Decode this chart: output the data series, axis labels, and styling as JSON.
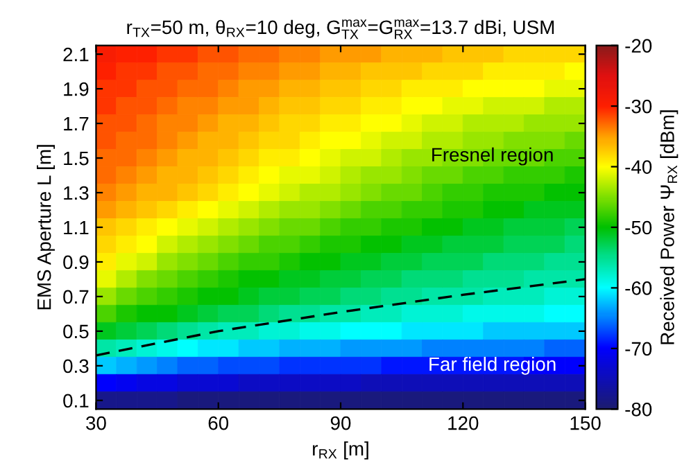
{
  "chart_data": {
    "type": "heatmap",
    "title": "r$_{TX}$=50 m, θ$_{RX}$=10 deg, G$^{max}$$_{TX}$=G$^{max}$$_{RX}$=13.7 dBi, USM",
    "xlabel": "r$_{RX}$ [m]",
    "ylabel": "EMS Aperture L [m]",
    "clabel": "Received Power Ψ$_{RX}$ [dBm]",
    "x": [
      32.5,
      37.5,
      42.5,
      47.5,
      52.5,
      57.5,
      62.5,
      67.5,
      72.5,
      77.5,
      82.5,
      87.5,
      92.5,
      97.5,
      102.5,
      107.5,
      112.5,
      117.5,
      122.5,
      127.5,
      132.5,
      137.5,
      142.5,
      147.5
    ],
    "y": [
      2.1,
      2.0,
      1.9,
      1.8,
      1.7,
      1.6,
      1.5,
      1.4,
      1.3,
      1.2,
      1.1,
      1.0,
      0.9,
      0.8,
      0.7,
      0.6,
      0.5,
      0.4,
      0.3,
      0.2,
      0.1
    ],
    "cells": [
      [
        -29,
        -30,
        -30,
        -31,
        -31,
        -32,
        -32,
        -33,
        -33,
        -34,
        -34,
        -35,
        -35,
        -35,
        -36,
        -36,
        -36,
        -37,
        -37,
        -37,
        -38,
        -38,
        -38,
        -38
      ],
      [
        -30,
        -31,
        -31,
        -32,
        -32,
        -33,
        -33,
        -34,
        -34,
        -35,
        -35,
        -36,
        -36,
        -37,
        -37,
        -37,
        -38,
        -38,
        -38,
        -39,
        -39,
        -39,
        -39,
        -40
      ],
      [
        -31,
        -31,
        -32,
        -32,
        -33,
        -33,
        -34,
        -35,
        -35,
        -36,
        -36,
        -37,
        -37,
        -38,
        -38,
        -39,
        -39,
        -39,
        -40,
        -40,
        -40,
        -40,
        -41,
        -41
      ],
      [
        -31,
        -32,
        -32,
        -33,
        -34,
        -34,
        -35,
        -35,
        -36,
        -37,
        -37,
        -38,
        -38,
        -39,
        -39,
        -40,
        -40,
        -41,
        -41,
        -42,
        -42,
        -42,
        -43,
        -43
      ],
      [
        -32,
        -32,
        -33,
        -34,
        -34,
        -35,
        -36,
        -36,
        -37,
        -38,
        -38,
        -39,
        -39,
        -40,
        -40,
        -41,
        -42,
        -42,
        -43,
        -43,
        -43,
        -44,
        -44,
        -44
      ],
      [
        -32,
        -33,
        -33,
        -34,
        -35,
        -36,
        -36,
        -37,
        -38,
        -38,
        -39,
        -40,
        -40,
        -41,
        -42,
        -42,
        -43,
        -43,
        -44,
        -44,
        -45,
        -45,
        -45,
        -46
      ],
      [
        -33,
        -33,
        -34,
        -35,
        -36,
        -36,
        -37,
        -38,
        -39,
        -39,
        -40,
        -41,
        -42,
        -42,
        -43,
        -44,
        -44,
        -45,
        -45,
        -46,
        -46,
        -46,
        -47,
        -47
      ],
      [
        -33,
        -34,
        -35,
        -36,
        -36,
        -37,
        -38,
        -39,
        -40,
        -41,
        -41,
        -42,
        -43,
        -44,
        -44,
        -45,
        -46,
        -46,
        -47,
        -47,
        -48,
        -48,
        -48,
        -49
      ],
      [
        -34,
        -35,
        -36,
        -36,
        -37,
        -38,
        -39,
        -40,
        -41,
        -42,
        -43,
        -43,
        -44,
        -45,
        -46,
        -46,
        -47,
        -48,
        -48,
        -49,
        -49,
        -49,
        -50,
        -50
      ],
      [
        -35,
        -36,
        -37,
        -38,
        -39,
        -40,
        -41,
        -42,
        -43,
        -44,
        -44,
        -45,
        -46,
        -47,
        -47,
        -48,
        -48,
        -49,
        -49,
        -50,
        -50,
        -51,
        -51,
        -51
      ],
      [
        -37,
        -38,
        -39,
        -40,
        -41,
        -42,
        -43,
        -44,
        -45,
        -46,
        -46,
        -47,
        -48,
        -48,
        -49,
        -49,
        -50,
        -50,
        -51,
        -51,
        -52,
        -52,
        -52,
        -53
      ],
      [
        -38,
        -39,
        -40,
        -42,
        -43,
        -44,
        -45,
        -46,
        -47,
        -47,
        -48,
        -49,
        -49,
        -50,
        -50,
        -51,
        -51,
        -52,
        -52,
        -52,
        -53,
        -53,
        -53,
        -54
      ],
      [
        -39,
        -41,
        -42,
        -44,
        -45,
        -46,
        -47,
        -48,
        -48,
        -49,
        -50,
        -50,
        -51,
        -51,
        -52,
        -52,
        -53,
        -53,
        -53,
        -54,
        -54,
        -54,
        -55,
        -55
      ],
      [
        -41,
        -43,
        -45,
        -46,
        -47,
        -48,
        -49,
        -50,
        -50,
        -51,
        -51,
        -52,
        -52,
        -53,
        -53,
        -54,
        -54,
        -54,
        -55,
        -55,
        -55,
        -56,
        -56,
        -56
      ],
      [
        -44,
        -46,
        -47,
        -48,
        -49,
        -50,
        -50,
        -51,
        -52,
        -52,
        -53,
        -53,
        -54,
        -54,
        -55,
        -55,
        -56,
        -56,
        -56,
        -57,
        -57,
        -57,
        -58,
        -58
      ],
      [
        -47,
        -49,
        -50,
        -50,
        -51,
        -52,
        -53,
        -53,
        -54,
        -55,
        -55,
        -56,
        -56,
        -57,
        -57,
        -58,
        -58,
        -58,
        -59,
        -59,
        -59,
        -59,
        -60,
        -60
      ],
      [
        -51,
        -52,
        -53,
        -54,
        -55,
        -56,
        -57,
        -57,
        -58,
        -58,
        -59,
        -59,
        -60,
        -60,
        -60,
        -61,
        -61,
        -61,
        -61,
        -62,
        -62,
        -62,
        -62,
        -62
      ],
      [
        -56,
        -57,
        -58,
        -59,
        -60,
        -61,
        -61,
        -62,
        -62,
        -63,
        -63,
        -63,
        -64,
        -64,
        -64,
        -64,
        -65,
        -65,
        -65,
        -65,
        -65,
        -65,
        -66,
        -66
      ],
      [
        -62,
        -63,
        -64,
        -65,
        -66,
        -66,
        -67,
        -67,
        -67,
        -68,
        -68,
        -68,
        -68,
        -68,
        -69,
        -69,
        -69,
        -69,
        -69,
        -69,
        -69,
        -70,
        -70,
        -70
      ],
      [
        -70,
        -71,
        -72,
        -72,
        -73,
        -73,
        -73,
        -74,
        -74,
        -74,
        -74,
        -74,
        -74,
        -75,
        -75,
        -75,
        -75,
        -75,
        -75,
        -75,
        -75,
        -75,
        -75,
        -75
      ],
      [
        -78,
        -78,
        -78,
        -78,
        -79,
        -79,
        -79,
        -79,
        -79,
        -79,
        -79,
        -79,
        -79,
        -79,
        -79,
        -79,
        -79,
        -79,
        -79,
        -79,
        -79,
        -79,
        -79,
        -79
      ]
    ],
    "series": [
      {
        "type": "line",
        "color": "#000000",
        "line_style": "dashed",
        "x": [
          30,
          60,
          90,
          120,
          150
        ],
        "values": [
          0.36,
          0.5,
          0.61,
          0.71,
          0.8
        ]
      }
    ],
    "xlim": [
      30,
      150
    ],
    "ylim": [
      0.05,
      2.15
    ],
    "xticks": [
      30,
      60,
      90,
      120,
      150
    ],
    "yticks": [
      0.1,
      0.3,
      0.5,
      0.7,
      0.9,
      1.1,
      1.3,
      1.5,
      1.7,
      1.9,
      2.1
    ],
    "clim": [
      -80,
      -20
    ],
    "cticks": [
      -80,
      -70,
      -60,
      -50,
      -40,
      -30,
      -20
    ],
    "annotations": [
      "Fresnel region",
      "Far field region"
    ]
  }
}
